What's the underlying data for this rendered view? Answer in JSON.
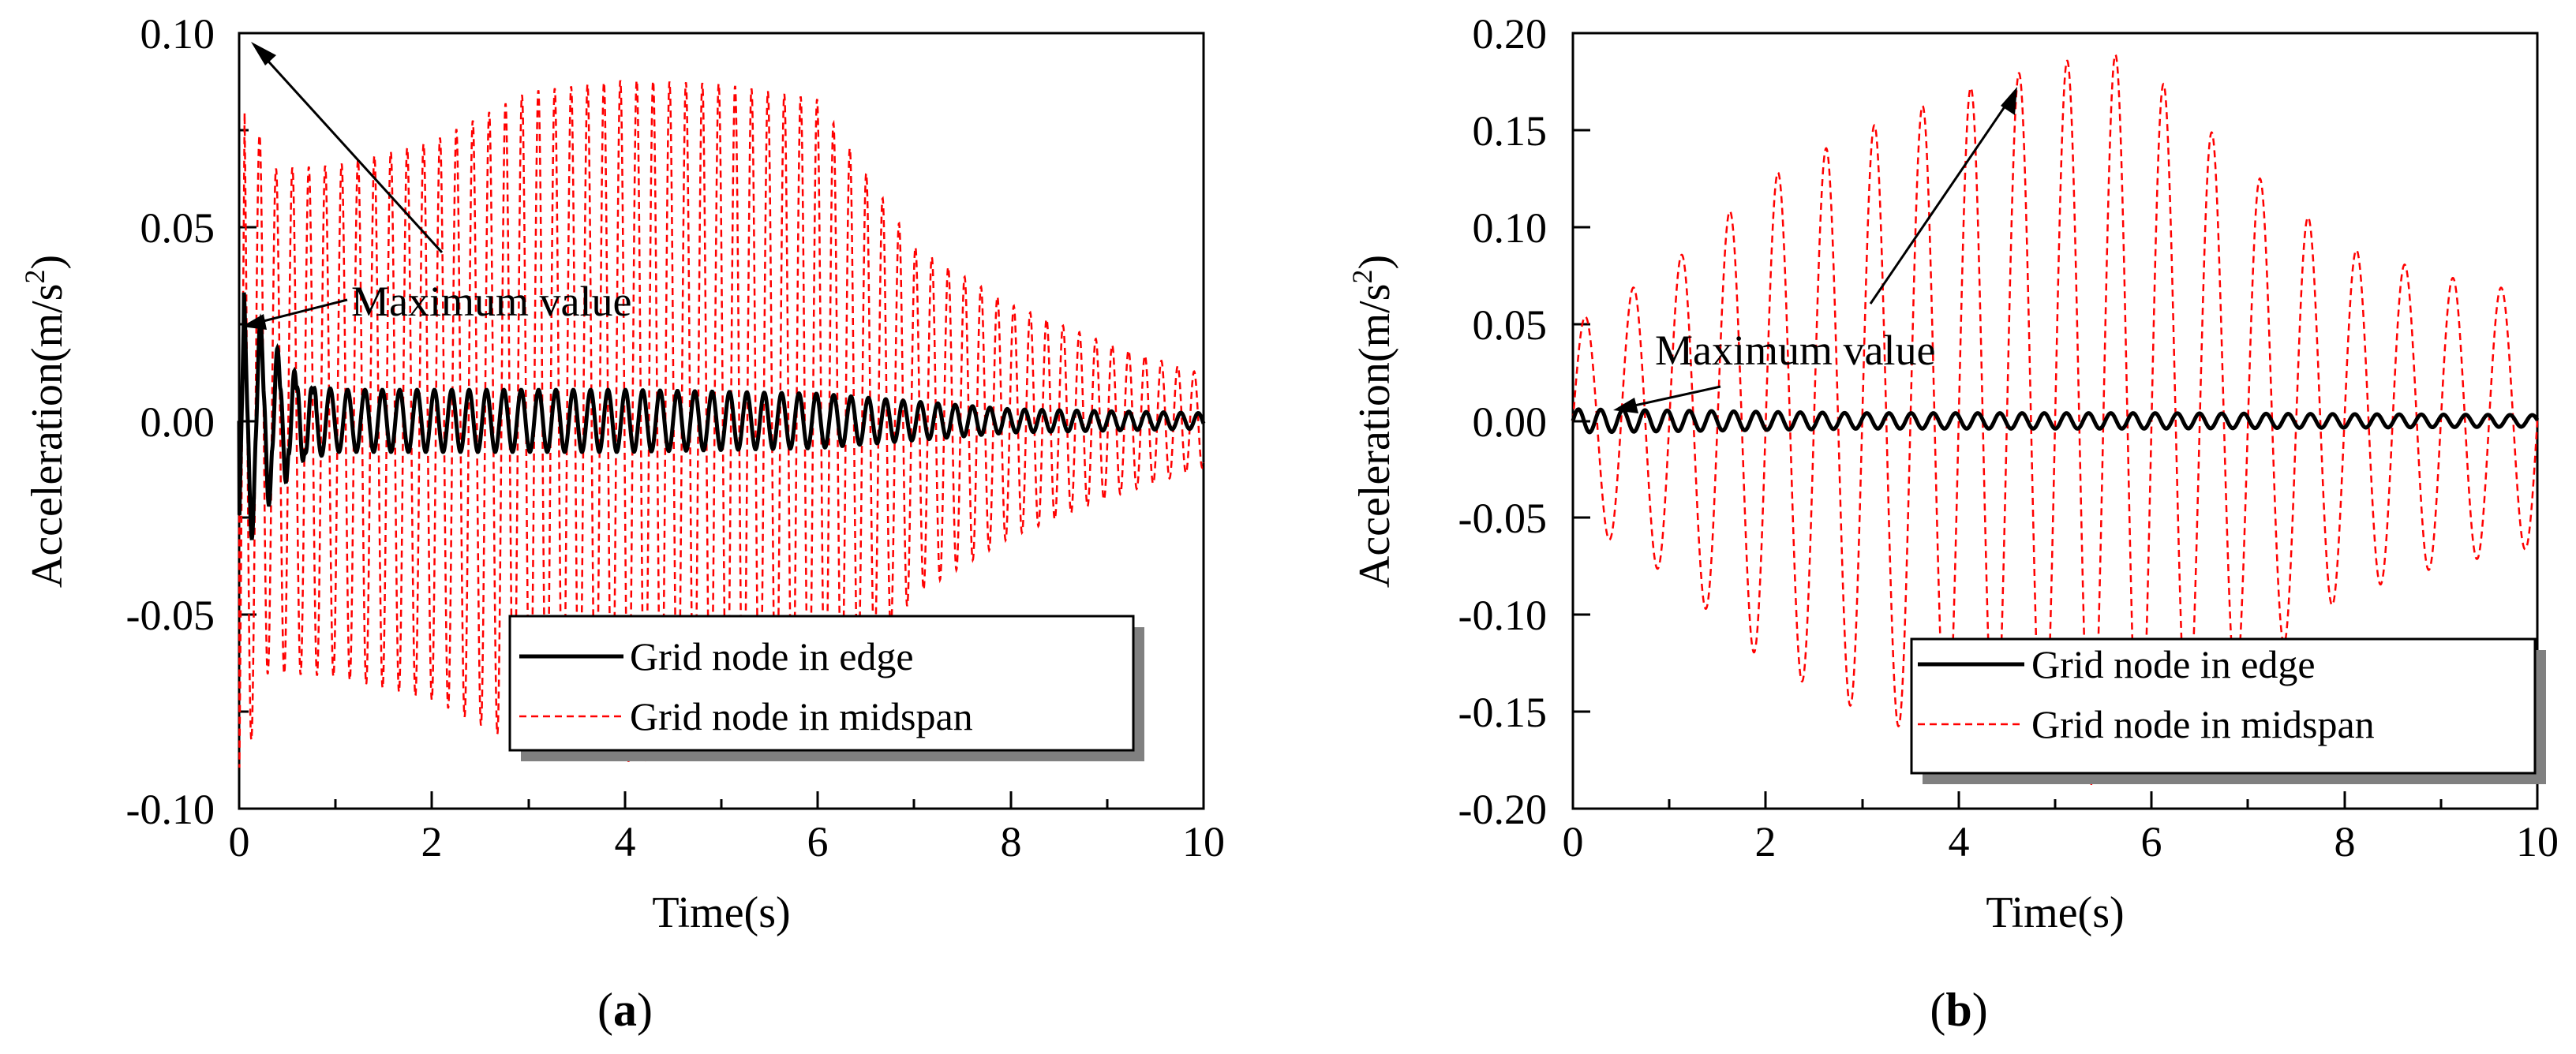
{
  "chart_data": [
    {
      "id": "a",
      "type": "line",
      "panel_label": "a",
      "xlabel": "Time(s)",
      "ylabel": "Acceleration(m/s",
      "ylabel_sup": "2",
      "ylabel_end": ")",
      "xlim": [
        0,
        10
      ],
      "ylim": [
        -0.1,
        0.1
      ],
      "xticks": [
        "0",
        "2",
        "4",
        "6",
        "8",
        "10"
      ],
      "yticks": [
        "0.10",
        "0.05",
        "0.00",
        "-0.05",
        "-0.10"
      ],
      "annotation": "Maximum value",
      "legend_position": "lower-right",
      "series": [
        {
          "name": "Grid node in edge",
          "style": "solid",
          "color": "#000000",
          "peak": 0.028,
          "envelope": [
            [
              0,
              0.028
            ],
            [
              0.3,
              0.018
            ],
            [
              0.7,
              0.01
            ],
            [
              1,
              0.008
            ],
            [
              2,
              0.008
            ],
            [
              4,
              0.008
            ],
            [
              6,
              0.007
            ],
            [
              7,
              0.005
            ],
            [
              8,
              0.003
            ],
            [
              10,
              0.002
            ]
          ],
          "period": 0.18
        },
        {
          "name": "Grid node in midspan",
          "style": "dashed",
          "color": "#ff0000",
          "peak": 0.095,
          "envelope": [
            [
              0,
              0.095
            ],
            [
              0.3,
              0.065
            ],
            [
              1,
              0.066
            ],
            [
              2,
              0.072
            ],
            [
              3,
              0.085
            ],
            [
              4,
              0.088
            ],
            [
              5,
              0.087
            ],
            [
              6,
              0.083
            ],
            [
              7,
              0.045
            ],
            [
              8,
              0.03
            ],
            [
              9,
              0.02
            ],
            [
              10,
              0.012
            ]
          ],
          "period": 0.17
        }
      ]
    },
    {
      "id": "b",
      "type": "line",
      "panel_label": "b",
      "xlabel": "Time(s)",
      "ylabel": "Acceleration(m/s",
      "ylabel_sup": "2",
      "ylabel_end": ")",
      "xlim": [
        0,
        10
      ],
      "ylim": [
        -0.2,
        0.2
      ],
      "xticks": [
        "0",
        "2",
        "4",
        "6",
        "8",
        "10"
      ],
      "yticks": [
        "0.20",
        "0.15",
        "0.10",
        "0.05",
        "0.00",
        "-0.05",
        "-0.10",
        "-0.15",
        "-0.20"
      ],
      "annotation": "Maximum value",
      "legend_position": "lower-right",
      "series": [
        {
          "name": "Grid node in edge",
          "style": "solid",
          "color": "#000000",
          "peak": 0.006,
          "envelope": [
            [
              0,
              0.006
            ],
            [
              3,
              0.004
            ],
            [
              6,
              0.004
            ],
            [
              10,
              0.003
            ]
          ],
          "period": 0.23
        },
        {
          "name": "Grid node in midspan",
          "style": "dashed",
          "color": "#ff0000",
          "peak": 0.19,
          "envelope": [
            [
              0,
              0.05
            ],
            [
              1,
              0.08
            ],
            [
              2,
              0.125
            ],
            [
              3,
              0.15
            ],
            [
              4,
              0.17
            ],
            [
              5,
              0.185
            ],
            [
              5.8,
              0.19
            ],
            [
              7,
              0.13
            ],
            [
              8,
              0.09
            ],
            [
              9,
              0.075
            ],
            [
              10,
              0.065
            ]
          ],
          "period": 0.5
        }
      ]
    }
  ]
}
